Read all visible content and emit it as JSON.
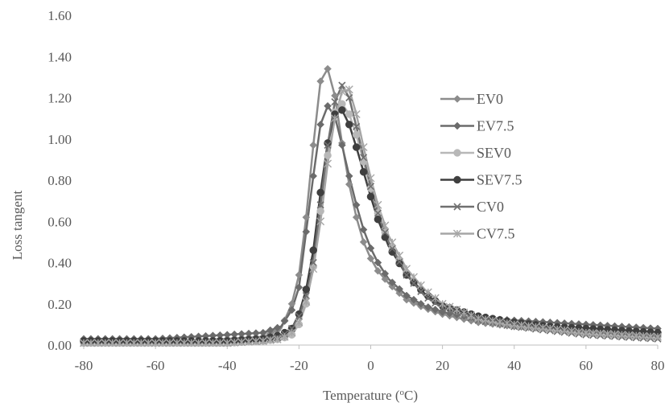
{
  "chart_data": {
    "type": "line",
    "xlabel": "Temperature (",
    "xlabel_sup": "o",
    "xlabel_suffix": "C)",
    "ylabel": "Loss tangent",
    "xlim": [
      -80,
      80
    ],
    "ylim": [
      0,
      1.6
    ],
    "x_ticks": [
      "-80",
      "-60",
      "-40",
      "-20",
      "0",
      "20",
      "40",
      "60",
      "80"
    ],
    "y_ticks": [
      "0.00",
      "0.20",
      "0.40",
      "0.60",
      "0.80",
      "1.00",
      "1.20",
      "1.40",
      "1.60"
    ],
    "grid": false,
    "legend_position": "right-center",
    "series": [
      {
        "name": "EV0",
        "color": "#8c8c8c",
        "marker": "diamond",
        "points": [
          [
            -80,
            0.02
          ],
          [
            -60,
            0.02
          ],
          [
            -40,
            0.03
          ],
          [
            -30,
            0.04
          ],
          [
            -25,
            0.08
          ],
          [
            -22,
            0.2
          ],
          [
            -20,
            0.34
          ],
          [
            -18,
            0.62
          ],
          [
            -16,
            0.97
          ],
          [
            -14,
            1.28
          ],
          [
            -12,
            1.34
          ],
          [
            -10,
            1.21
          ],
          [
            -8,
            0.98
          ],
          [
            -6,
            0.78
          ],
          [
            -4,
            0.62
          ],
          [
            -2,
            0.5
          ],
          [
            0,
            0.42
          ],
          [
            2,
            0.36
          ],
          [
            5,
            0.3
          ],
          [
            10,
            0.22
          ],
          [
            15,
            0.18
          ],
          [
            20,
            0.15
          ],
          [
            30,
            0.11
          ],
          [
            40,
            0.09
          ],
          [
            50,
            0.08
          ],
          [
            60,
            0.07
          ],
          [
            70,
            0.06
          ],
          [
            80,
            0.05
          ]
        ]
      },
      {
        "name": "EV7.5",
        "color": "#6b6b6b",
        "marker": "diamond",
        "points": [
          [
            -80,
            0.03
          ],
          [
            -60,
            0.03
          ],
          [
            -40,
            0.05
          ],
          [
            -30,
            0.06
          ],
          [
            -25,
            0.09
          ],
          [
            -22,
            0.17
          ],
          [
            -20,
            0.28
          ],
          [
            -18,
            0.55
          ],
          [
            -16,
            0.82
          ],
          [
            -14,
            1.07
          ],
          [
            -12,
            1.16
          ],
          [
            -10,
            1.11
          ],
          [
            -8,
            0.97
          ],
          [
            -6,
            0.82
          ],
          [
            -4,
            0.68
          ],
          [
            -2,
            0.56
          ],
          [
            0,
            0.47
          ],
          [
            2,
            0.4
          ],
          [
            5,
            0.32
          ],
          [
            10,
            0.24
          ],
          [
            15,
            0.19
          ],
          [
            20,
            0.16
          ],
          [
            30,
            0.13
          ],
          [
            40,
            0.12
          ],
          [
            50,
            0.11
          ],
          [
            60,
            0.1
          ],
          [
            70,
            0.09
          ],
          [
            80,
            0.08
          ]
        ]
      },
      {
        "name": "SEV0",
        "color": "#b8b8b8",
        "marker": "circle",
        "points": [
          [
            -80,
            0.01
          ],
          [
            -60,
            0.01
          ],
          [
            -40,
            0.01
          ],
          [
            -30,
            0.02
          ],
          [
            -25,
            0.03
          ],
          [
            -22,
            0.05
          ],
          [
            -20,
            0.1
          ],
          [
            -18,
            0.2
          ],
          [
            -16,
            0.38
          ],
          [
            -14,
            0.65
          ],
          [
            -12,
            0.92
          ],
          [
            -10,
            1.13
          ],
          [
            -8,
            1.17
          ],
          [
            -6,
            1.12
          ],
          [
            -4,
            1.02
          ],
          [
            -2,
            0.89
          ],
          [
            0,
            0.76
          ],
          [
            2,
            0.64
          ],
          [
            5,
            0.5
          ],
          [
            10,
            0.35
          ],
          [
            15,
            0.25
          ],
          [
            20,
            0.19
          ],
          [
            30,
            0.13
          ],
          [
            40,
            0.1
          ],
          [
            50,
            0.08
          ],
          [
            60,
            0.06
          ],
          [
            70,
            0.05
          ],
          [
            80,
            0.04
          ]
        ]
      },
      {
        "name": "SEV7.5",
        "color": "#3f3f3f",
        "marker": "circle",
        "points": [
          [
            -80,
            0.02
          ],
          [
            -60,
            0.02
          ],
          [
            -40,
            0.02
          ],
          [
            -30,
            0.03
          ],
          [
            -25,
            0.05
          ],
          [
            -22,
            0.08
          ],
          [
            -20,
            0.15
          ],
          [
            -18,
            0.27
          ],
          [
            -16,
            0.46
          ],
          [
            -14,
            0.74
          ],
          [
            -12,
            0.98
          ],
          [
            -10,
            1.12
          ],
          [
            -8,
            1.14
          ],
          [
            -6,
            1.07
          ],
          [
            -4,
            0.96
          ],
          [
            -2,
            0.84
          ],
          [
            0,
            0.72
          ],
          [
            2,
            0.61
          ],
          [
            5,
            0.48
          ],
          [
            10,
            0.34
          ],
          [
            15,
            0.25
          ],
          [
            20,
            0.19
          ],
          [
            30,
            0.14
          ],
          [
            40,
            0.11
          ],
          [
            50,
            0.09
          ],
          [
            60,
            0.08
          ],
          [
            70,
            0.07
          ],
          [
            80,
            0.06
          ]
        ]
      },
      {
        "name": "CV0",
        "color": "#707070",
        "marker": "cross",
        "points": [
          [
            -80,
            0.01
          ],
          [
            -60,
            0.01
          ],
          [
            -40,
            0.01
          ],
          [
            -30,
            0.02
          ],
          [
            -25,
            0.04
          ],
          [
            -22,
            0.08
          ],
          [
            -20,
            0.14
          ],
          [
            -18,
            0.24
          ],
          [
            -16,
            0.4
          ],
          [
            -14,
            0.68
          ],
          [
            -12,
            0.97
          ],
          [
            -10,
            1.18
          ],
          [
            -8,
            1.26
          ],
          [
            -6,
            1.2
          ],
          [
            -4,
            1.06
          ],
          [
            -2,
            0.91
          ],
          [
            0,
            0.77
          ],
          [
            2,
            0.64
          ],
          [
            5,
            0.5
          ],
          [
            10,
            0.34
          ],
          [
            15,
            0.24
          ],
          [
            20,
            0.18
          ],
          [
            30,
            0.12
          ],
          [
            40,
            0.09
          ],
          [
            50,
            0.07
          ],
          [
            60,
            0.05
          ],
          [
            70,
            0.04
          ],
          [
            80,
            0.03
          ]
        ]
      },
      {
        "name": "CV7.5",
        "color": "#a6a6a6",
        "marker": "asterisk",
        "points": [
          [
            -80,
            0.01
          ],
          [
            -60,
            0.01
          ],
          [
            -40,
            0.01
          ],
          [
            -30,
            0.02
          ],
          [
            -25,
            0.03
          ],
          [
            -22,
            0.06
          ],
          [
            -20,
            0.11
          ],
          [
            -18,
            0.21
          ],
          [
            -16,
            0.37
          ],
          [
            -14,
            0.6
          ],
          [
            -12,
            0.88
          ],
          [
            -10,
            1.1
          ],
          [
            -8,
            1.23
          ],
          [
            -6,
            1.24
          ],
          [
            -4,
            1.12
          ],
          [
            -2,
            0.96
          ],
          [
            0,
            0.81
          ],
          [
            2,
            0.68
          ],
          [
            5,
            0.53
          ],
          [
            10,
            0.37
          ],
          [
            15,
            0.27
          ],
          [
            20,
            0.2
          ],
          [
            30,
            0.13
          ],
          [
            40,
            0.1
          ],
          [
            50,
            0.08
          ],
          [
            60,
            0.06
          ],
          [
            70,
            0.05
          ],
          [
            80,
            0.04
          ]
        ]
      }
    ]
  }
}
